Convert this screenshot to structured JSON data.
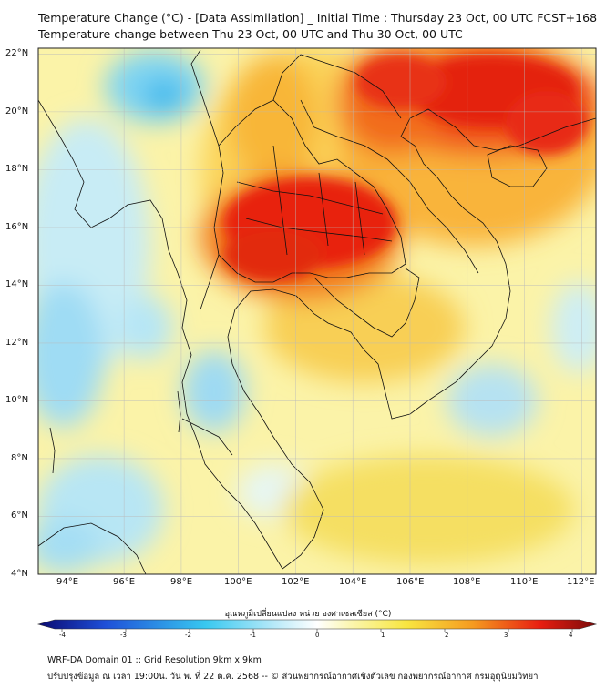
{
  "title_line1": "Temperature Change (°C) - [Data Assimilation] _ Initial Time : Thursday 23 Oct, 00 UTC FCST+168",
  "title_line2": "Temperature change between Thu 23 Oct, 00 UTC and Thu 30 Oct, 00 UTC",
  "axes": {
    "lat_labels": [
      "22°N",
      "20°N",
      "18°N",
      "16°N",
      "14°N",
      "12°N",
      "10°N",
      "8°N",
      "6°N",
      "4°N"
    ],
    "lon_labels": [
      "94°E",
      "96°E",
      "98°E",
      "100°E",
      "102°E",
      "104°E",
      "106°E",
      "108°E",
      "110°E",
      "112°E"
    ],
    "lat_range": [
      4,
      22.2
    ],
    "lon_range": [
      93,
      112.5
    ],
    "grid": true
  },
  "colorbar": {
    "title": "อุณหภูมิเปลี่ยนแปลง หน่วย องศาเซลเซียส (°C)",
    "ticks": [
      "-4",
      "-3",
      "-2",
      "-1",
      "0",
      "1",
      "2",
      "3",
      "4"
    ],
    "range": [
      -4,
      4
    ],
    "colors": {
      "cold_extreme": "#0a0a70",
      "blue": "#1e4fd8",
      "cyan": "#38c8f0",
      "pale_cyan": "#c8eefa",
      "white": "#ffffff",
      "yellow": "#f8f070",
      "orange": "#f59a20",
      "red": "#e81e10",
      "dark_red": "#7a0a0a"
    }
  },
  "footer_line1": "WRF-DA Domain 01 :: Grid Resolution 9km x 9km",
  "footer_line2": "ปรับปรุงข้อมูล ณ เวลา 19:00น. วัน พ. ที่ 22 ต.ค. 2568 -- © ส่วนพยากรณ์อากาศเชิงตัวเลข กองพยากรณ์อากาศ กรมอุตุนิยมวิทยา"
}
